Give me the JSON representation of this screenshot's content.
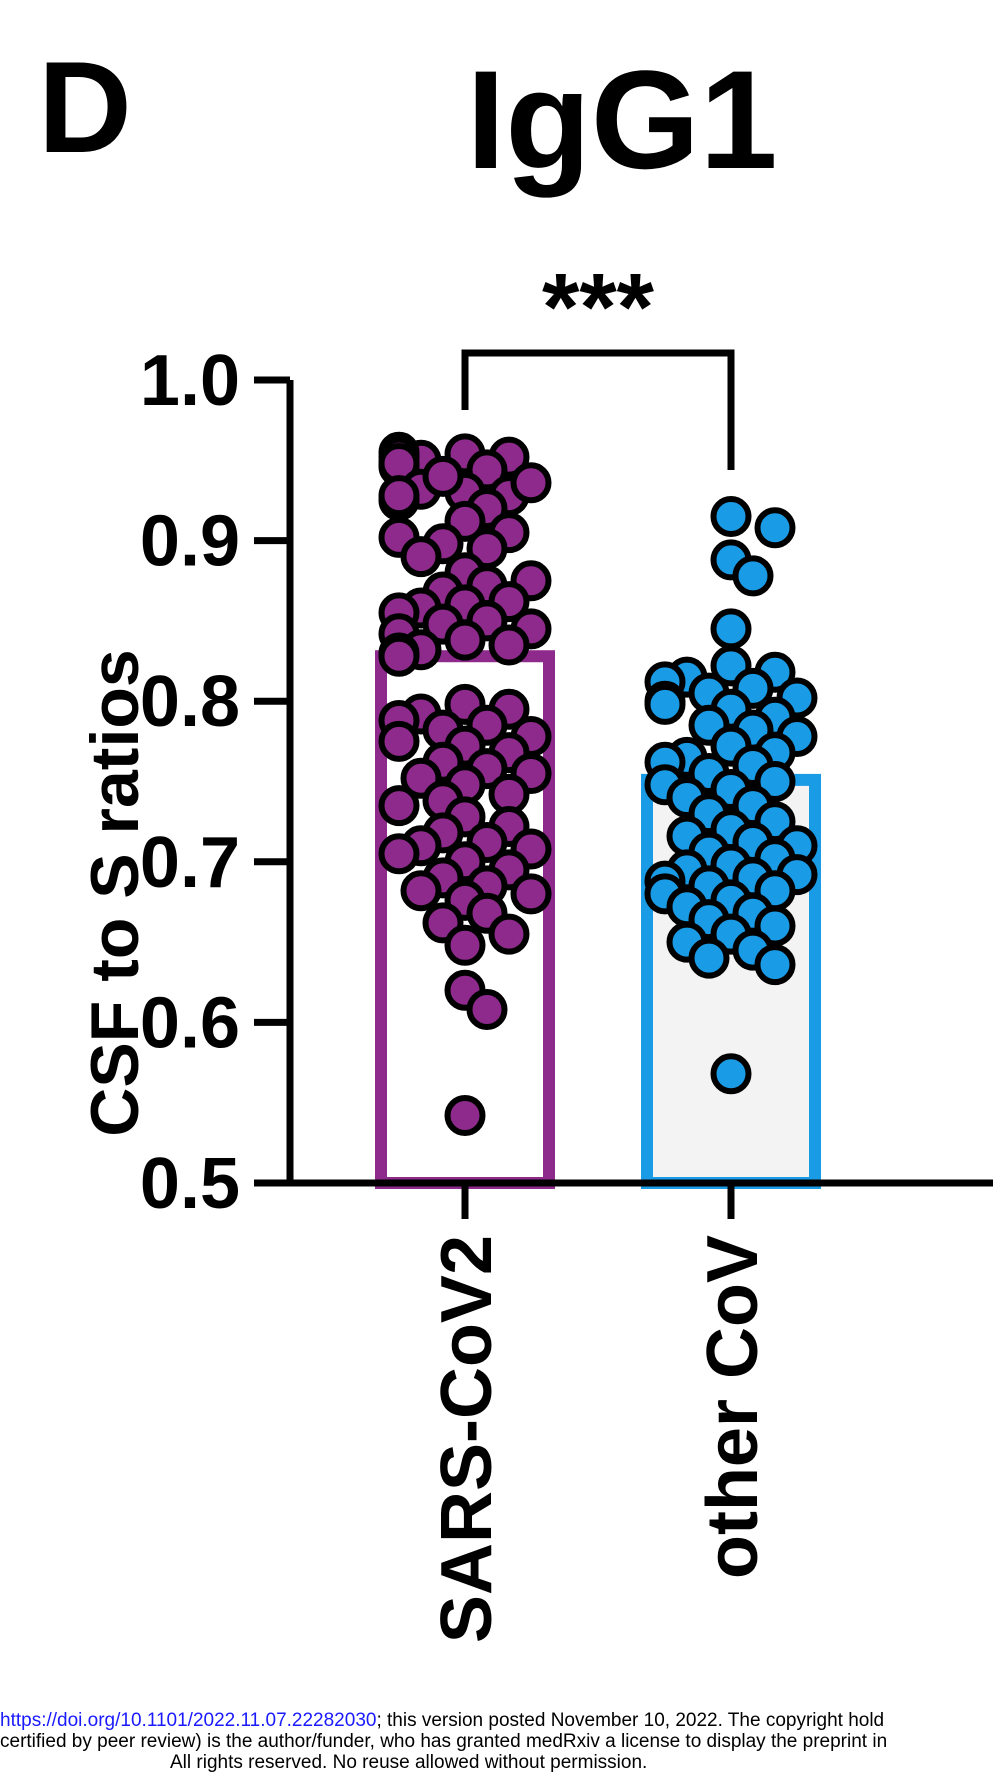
{
  "panel_label": "D",
  "chart_data": {
    "type": "bar",
    "title": "IgG1",
    "ylabel": "CSF to S ratios",
    "xlabel": "",
    "ylim": [
      0.5,
      1.0
    ],
    "yticks": [
      "0.5",
      "0.6",
      "0.7",
      "0.8",
      "0.9",
      "1.0"
    ],
    "categories": [
      "SARS-CoV2",
      "other CoV"
    ],
    "values": [
      0.828,
      0.751
    ],
    "significance": "***",
    "colors": {
      "SARS-CoV2": "#8e2a8c",
      "other CoV": "#1a9be6",
      "bar_fill_other": "#f3f3f3"
    },
    "points": [
      [
        0.954,
        0.952,
        0.95,
        0.948,
        0.955,
        0.946,
        0.952,
        0.944,
        0.948,
        0.93,
        0.928,
        0.932,
        0.925,
        0.94,
        0.936,
        0.928,
        0.92,
        0.912,
        0.905,
        0.898,
        0.902,
        0.895,
        0.89,
        0.88,
        0.872,
        0.875,
        0.868,
        0.862,
        0.86,
        0.858,
        0.855,
        0.85,
        0.848,
        0.845,
        0.842,
        0.838,
        0.835,
        0.832,
        0.83,
        0.828,
        0.798,
        0.795,
        0.792,
        0.788,
        0.785,
        0.782,
        0.778,
        0.775,
        0.772,
        0.768,
        0.762,
        0.758,
        0.755,
        0.752,
        0.748,
        0.742,
        0.738,
        0.735,
        0.728,
        0.722,
        0.718,
        0.712,
        0.71,
        0.708,
        0.705,
        0.7,
        0.695,
        0.69,
        0.685,
        0.682,
        0.68,
        0.676,
        0.668,
        0.662,
        0.655,
        0.648,
        0.62,
        0.608,
        0.542
      ],
      [
        0.915,
        0.908,
        0.888,
        0.878,
        0.845,
        0.822,
        0.818,
        0.815,
        0.812,
        0.808,
        0.805,
        0.802,
        0.8,
        0.798,
        0.795,
        0.79,
        0.785,
        0.782,
        0.778,
        0.772,
        0.768,
        0.765,
        0.762,
        0.76,
        0.755,
        0.75,
        0.748,
        0.745,
        0.74,
        0.735,
        0.73,
        0.725,
        0.72,
        0.716,
        0.712,
        0.71,
        0.706,
        0.702,
        0.698,
        0.695,
        0.692,
        0.69,
        0.688,
        0.685,
        0.682,
        0.68,
        0.676,
        0.672,
        0.668,
        0.664,
        0.66,
        0.655,
        0.65,
        0.645,
        0.64,
        0.636,
        0.568
      ]
    ]
  },
  "footer": {
    "doi_link": "https://doi.org/10.1101/2022.11.07.22282030",
    "line1_rest": "; this version posted November 10, 2022. The copyright hold",
    "line2": "certified by peer review) is the author/funder, who has granted medRxiv a license to display the preprint in",
    "line3": "All rights reserved. No reuse allowed without permission."
  }
}
